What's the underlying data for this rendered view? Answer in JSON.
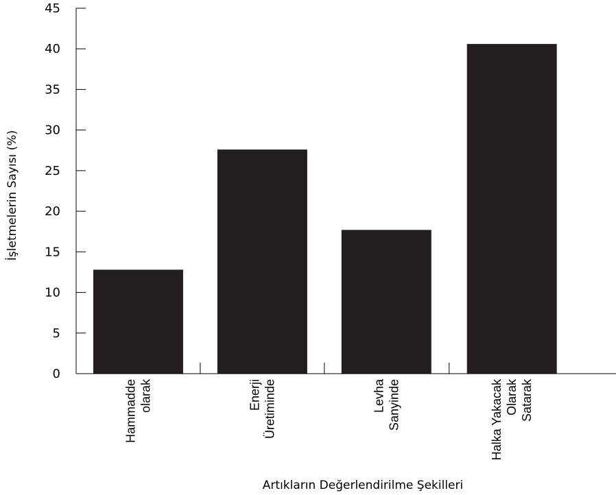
{
  "chart_data": {
    "type": "bar",
    "categories": [
      [
        "Hammadde",
        "olarak"
      ],
      [
        "Enerji",
        "Üretiminde"
      ],
      [
        "Levha",
        "Sanyinde"
      ],
      [
        "Halka Yakacak",
        "Olarak",
        "Satarak"
      ]
    ],
    "values": [
      12.8,
      27.6,
      17.7,
      40.6
    ],
    "xlabel": "Artıkların Değerlendirilme Şekilleri",
    "ylabel": "İşletmelerin Sayısı (%)",
    "ylim": [
      0,
      45
    ],
    "yticks": [
      0,
      5,
      10,
      15,
      20,
      25,
      30,
      35,
      40,
      45
    ],
    "bar_color": "#231f20",
    "grid": false
  }
}
